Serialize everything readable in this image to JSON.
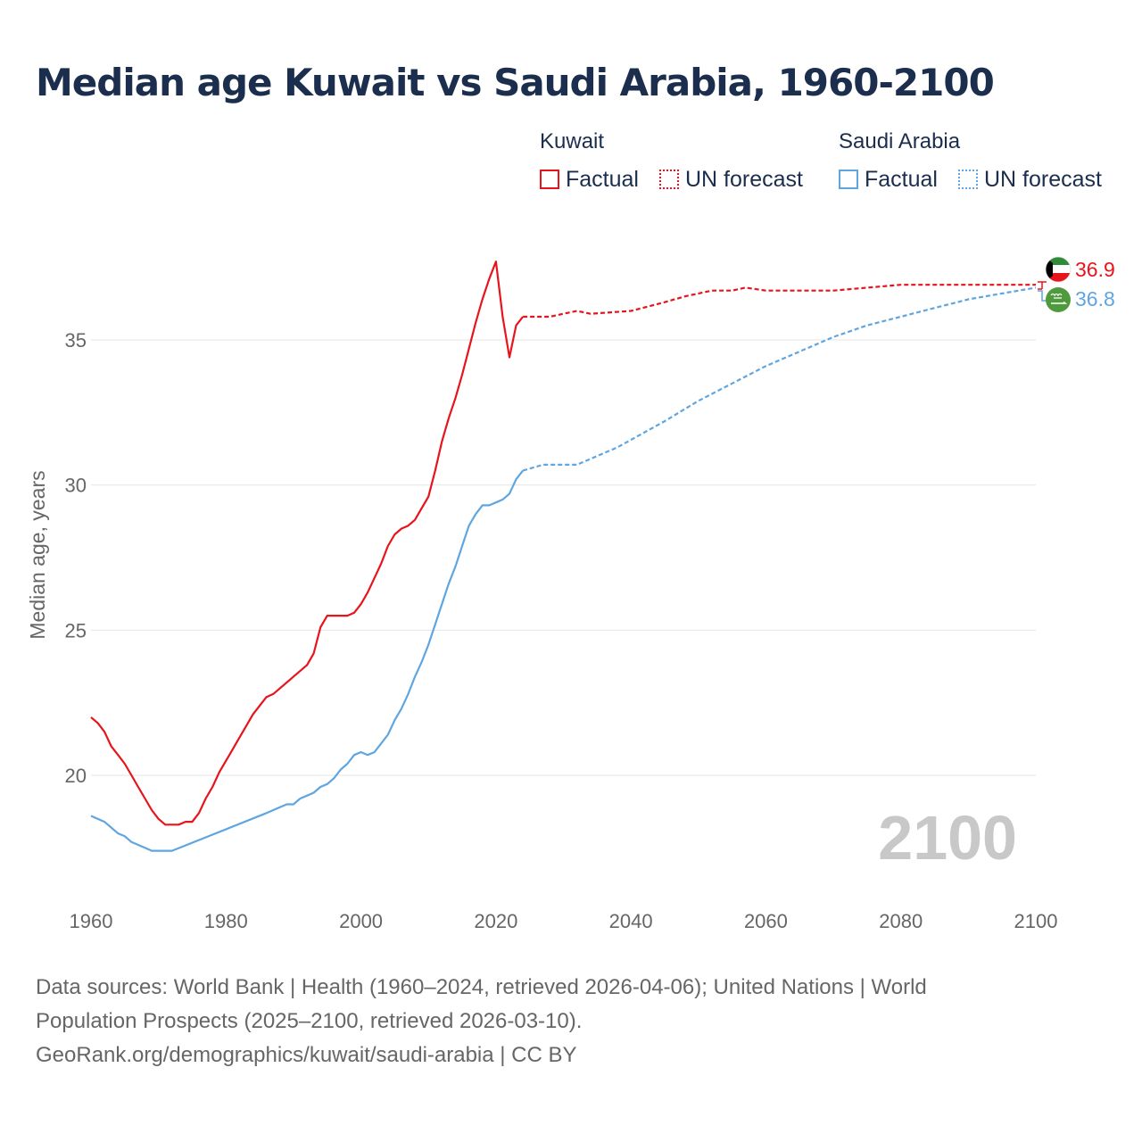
{
  "title": "Median age Kuwait vs Saudi Arabia, 1960-2100",
  "legend": {
    "kuwait": {
      "name": "Kuwait",
      "factual": "Factual",
      "forecast": "UN forecast",
      "color": "#e8141c"
    },
    "saudi": {
      "name": "Saudi Arabia",
      "factual": "Factual",
      "forecast": "UN forecast",
      "color": "#5fa5e0"
    }
  },
  "year_watermark": "2100",
  "end_labels": {
    "kuwait": "36.9",
    "saudi": "36.8"
  },
  "flags": {
    "kuwait": "kuwait-flag-icon",
    "saudi": "saudi-flag-icon"
  },
  "footer": {
    "line1": "Data sources: World Bank | Health (1960–2024, retrieved 2026-04-06); United Nations | World",
    "line2": "Population Prospects (2025–2100, retrieved 2026-03-10).",
    "line3": "GeoRank.org/demographics/kuwait/saudi-arabia | CC BY"
  },
  "chart_data": {
    "type": "line",
    "title": "Median age Kuwait vs Saudi Arabia, 1960-2100",
    "xlabel": "",
    "ylabel": "Median age, years",
    "xlim": [
      1960,
      2100
    ],
    "ylim": [
      16.5,
      38.5
    ],
    "xticks": [
      1960,
      1980,
      2000,
      2020,
      2040,
      2060,
      2080,
      2100
    ],
    "yticks": [
      20,
      25,
      30,
      35
    ],
    "grid": true,
    "series": [
      {
        "name": "Kuwait",
        "kind": "Factual",
        "color": "#e8141c",
        "dashed": false,
        "x": [
          1960,
          1961,
          1962,
          1963,
          1964,
          1965,
          1966,
          1967,
          1968,
          1969,
          1970,
          1971,
          1972,
          1973,
          1974,
          1975,
          1976,
          1977,
          1978,
          1979,
          1980,
          1981,
          1982,
          1983,
          1984,
          1985,
          1986,
          1987,
          1988,
          1989,
          1990,
          1991,
          1992,
          1993,
          1994,
          1995,
          1996,
          1997,
          1998,
          1999,
          2000,
          2001,
          2002,
          2003,
          2004,
          2005,
          2006,
          2007,
          2008,
          2009,
          2010,
          2011,
          2012,
          2013,
          2014,
          2015,
          2016,
          2017,
          2018,
          2019,
          2020,
          2021,
          2022,
          2023,
          2024
        ],
        "y": [
          22.0,
          21.8,
          21.5,
          21.0,
          20.7,
          20.4,
          20.0,
          19.6,
          19.2,
          18.8,
          18.5,
          18.3,
          18.3,
          18.3,
          18.4,
          18.4,
          18.7,
          19.2,
          19.6,
          20.1,
          20.5,
          20.9,
          21.3,
          21.7,
          22.1,
          22.4,
          22.7,
          22.8,
          23.0,
          23.2,
          23.4,
          23.6,
          23.8,
          24.2,
          25.1,
          25.5,
          25.5,
          25.5,
          25.5,
          25.6,
          25.9,
          26.3,
          26.8,
          27.3,
          27.9,
          28.3,
          28.5,
          28.6,
          28.8,
          29.2,
          29.6,
          30.5,
          31.5,
          32.3,
          33.0,
          33.8,
          34.7,
          35.6,
          36.4,
          37.1,
          37.7,
          35.8,
          34.4,
          35.5,
          35.8
        ]
      },
      {
        "name": "Kuwait",
        "kind": "UN forecast",
        "color": "#e8141c",
        "dashed": true,
        "x": [
          2024,
          2028,
          2030,
          2032,
          2034,
          2040,
          2045,
          2048,
          2052,
          2055,
          2057,
          2060,
          2070,
          2080,
          2100
        ],
        "y": [
          35.8,
          35.8,
          35.9,
          36.0,
          35.9,
          36.0,
          36.3,
          36.5,
          36.7,
          36.7,
          36.8,
          36.7,
          36.7,
          36.9,
          36.9
        ]
      },
      {
        "name": "Saudi Arabia",
        "kind": "Factual",
        "color": "#5fa5e0",
        "dashed": false,
        "x": [
          1960,
          1962,
          1964,
          1965,
          1966,
          1968,
          1969,
          1972,
          1986,
          1989,
          1990,
          1991,
          1992,
          1993,
          1994,
          1995,
          1996,
          1997,
          1998,
          1999,
          2000,
          2001,
          2002,
          2003,
          2004,
          2005,
          2006,
          2007,
          2008,
          2009,
          2010,
          2011,
          2012,
          2013,
          2014,
          2015,
          2016,
          2017,
          2018,
          2019,
          2020,
          2021,
          2022,
          2023,
          2024
        ],
        "y": [
          18.6,
          18.4,
          18.0,
          17.9,
          17.7,
          17.5,
          17.4,
          17.4,
          18.7,
          19.0,
          19.0,
          19.2,
          19.3,
          19.4,
          19.6,
          19.7,
          19.9,
          20.2,
          20.4,
          20.7,
          20.8,
          20.7,
          20.8,
          21.1,
          21.4,
          21.9,
          22.3,
          22.8,
          23.4,
          23.9,
          24.5,
          25.2,
          25.9,
          26.6,
          27.2,
          27.9,
          28.6,
          29.0,
          29.3,
          29.3,
          29.4,
          29.5,
          29.7,
          30.2,
          30.5
        ]
      },
      {
        "name": "Saudi Arabia",
        "kind": "UN forecast",
        "color": "#5fa5e0",
        "dashed": true,
        "x": [
          2024,
          2027,
          2032,
          2038,
          2045,
          2050,
          2055,
          2060,
          2065,
          2070,
          2075,
          2080,
          2085,
          2090,
          2095,
          2100
        ],
        "y": [
          30.5,
          30.7,
          30.7,
          31.3,
          32.2,
          32.9,
          33.5,
          34.1,
          34.6,
          35.1,
          35.5,
          35.8,
          36.1,
          36.4,
          36.6,
          36.8
        ]
      }
    ]
  }
}
